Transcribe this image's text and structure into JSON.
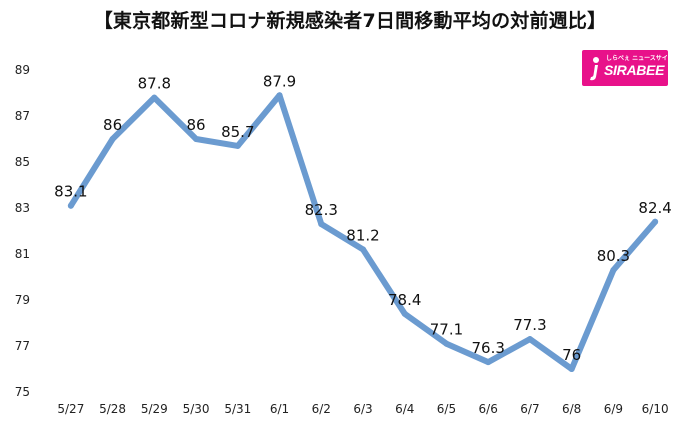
{
  "title": "【東京都新型コロナ新規感染者7日間移動平均の対前週比】",
  "logo": {
    "brand": "SIRABEE",
    "tagline": "しらべぇ ニュースサイト"
  },
  "colors": {
    "line": "#6b9bd0",
    "logo_bg": "#e8118a"
  },
  "chart_data": {
    "type": "line",
    "title": "【東京都新型コロナ新規感染者7日間移動平均の対前週比】",
    "xlabel": "",
    "ylabel": "",
    "categories": [
      "5/27",
      "5/28",
      "5/29",
      "5/30",
      "5/31",
      "6/1",
      "6/2",
      "6/3",
      "6/4",
      "6/5",
      "6/6",
      "6/7",
      "6/8",
      "6/9",
      "6/10"
    ],
    "series": [
      {
        "values": [
          83.1,
          86,
          87.8,
          86,
          85.7,
          87.9,
          82.3,
          81.2,
          78.4,
          77.1,
          76.3,
          77.3,
          76,
          80.3,
          82.4
        ]
      }
    ],
    "ylim": [
      75,
      89
    ],
    "yticks": [
      75,
      77,
      79,
      81,
      83,
      85,
      87,
      89
    ],
    "data_labels": [
      "83.1",
      "86",
      "87.8",
      "86",
      "85.7",
      "87.9",
      "82.3",
      "81.2",
      "78.4",
      "77.1",
      "76.3",
      "77.3",
      "76",
      "80.3",
      "82.4"
    ],
    "grid": false,
    "legend": "none"
  }
}
